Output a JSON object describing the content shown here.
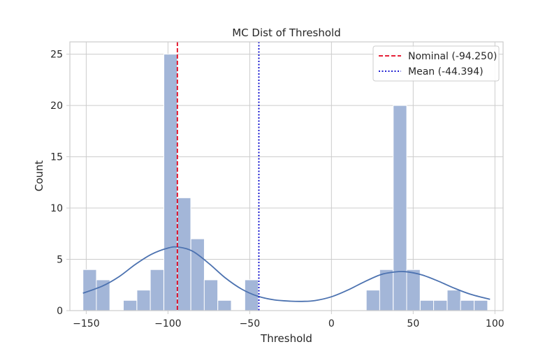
{
  "chart_data": {
    "type": "bar",
    "title": "MC Dist of Threshold",
    "xlabel": "Threshold",
    "ylabel": "Count",
    "xlim": [
      -160,
      105
    ],
    "ylim": [
      0,
      26.2
    ],
    "xticks": [
      -150,
      -100,
      -50,
      0,
      50,
      100
    ],
    "yticks": [
      0,
      5,
      10,
      15,
      20,
      25
    ],
    "grid": true,
    "legend_position": "top-right",
    "bin_width": 8.25,
    "bins": [
      {
        "x0": -152.0,
        "count": 4
      },
      {
        "x0": -143.8,
        "count": 3
      },
      {
        "x0": -135.5,
        "count": 0
      },
      {
        "x0": -127.3,
        "count": 1
      },
      {
        "x0": -119.0,
        "count": 2
      },
      {
        "x0": -110.8,
        "count": 4
      },
      {
        "x0": -102.5,
        "count": 25
      },
      {
        "x0": -94.3,
        "count": 11
      },
      {
        "x0": -86.0,
        "count": 7
      },
      {
        "x0": -77.8,
        "count": 3
      },
      {
        "x0": -69.5,
        "count": 1
      },
      {
        "x0": -61.3,
        "count": 0
      },
      {
        "x0": -53.0,
        "count": 3
      },
      {
        "x0": -44.8,
        "count": 0
      },
      {
        "x0": -36.5,
        "count": 0
      },
      {
        "x0": -28.3,
        "count": 0
      },
      {
        "x0": -20.0,
        "count": 0
      },
      {
        "x0": -11.8,
        "count": 0
      },
      {
        "x0": -3.5,
        "count": 0
      },
      {
        "x0": 4.8,
        "count": 0
      },
      {
        "x0": 13.0,
        "count": 0
      },
      {
        "x0": 21.3,
        "count": 2
      },
      {
        "x0": 29.5,
        "count": 4
      },
      {
        "x0": 37.8,
        "count": 20
      },
      {
        "x0": 46.0,
        "count": 4
      },
      {
        "x0": 54.3,
        "count": 1
      },
      {
        "x0": 62.5,
        "count": 1
      },
      {
        "x0": 70.8,
        "count": 2
      },
      {
        "x0": 79.0,
        "count": 1
      },
      {
        "x0": 87.3,
        "count": 1
      }
    ],
    "kde": {
      "x": [
        -152,
        -140,
        -130,
        -120,
        -110,
        -100,
        -94,
        -85,
        -75,
        -65,
        -55,
        -45,
        -35,
        -25,
        -18,
        -10,
        0,
        10,
        20,
        30,
        38,
        45,
        55,
        65,
        75,
        85,
        97
      ],
      "y": [
        1.7,
        2.4,
        3.3,
        4.5,
        5.5,
        6.1,
        6.2,
        5.8,
        4.6,
        3.2,
        2.1,
        1.4,
        1.05,
        0.92,
        0.9,
        0.98,
        1.35,
        2.0,
        2.8,
        3.5,
        3.75,
        3.8,
        3.5,
        2.9,
        2.2,
        1.6,
        1.1
      ]
    },
    "reference_lines": [
      {
        "name": "Nominal (-94.250)",
        "x": -94.25,
        "color": "#e3001b",
        "style": "dashed"
      },
      {
        "name": "Mean (-44.394)",
        "x": -44.394,
        "color": "#0000cc",
        "style": "dotted"
      }
    ],
    "colors": {
      "bar_fill": "#a3b6d8",
      "bar_stroke": "#ffffff",
      "kde_line": "#4c72b0",
      "grid": "#cccccc",
      "spine": "#cccccc"
    }
  }
}
